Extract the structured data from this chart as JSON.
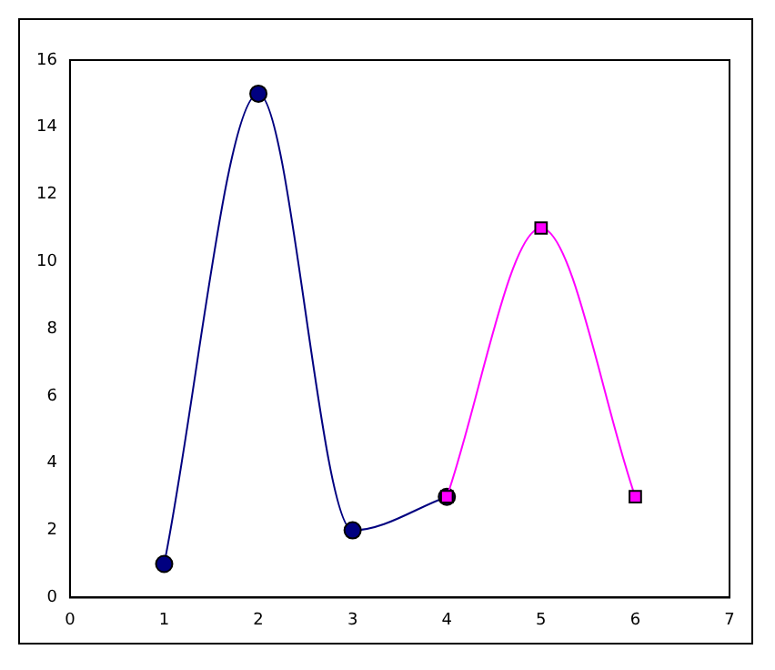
{
  "chart_data": {
    "type": "line",
    "xlim": [
      0,
      7
    ],
    "xticks": [
      0,
      1,
      2,
      3,
      4,
      5,
      6,
      7
    ],
    "ylim": [
      0,
      16
    ],
    "yticks": [
      0,
      2,
      4,
      6,
      8,
      10,
      12,
      14,
      16
    ],
    "grid": false,
    "legend": false,
    "series": [
      {
        "color": "#000080",
        "marker": "circle",
        "x": [
          1,
          2,
          3,
          4
        ],
        "values": [
          1,
          15,
          2,
          3
        ]
      },
      {
        "color": "#ff00ff",
        "marker": "square",
        "x": [
          4,
          5,
          6
        ],
        "values": [
          3,
          11,
          3
        ]
      }
    ]
  }
}
